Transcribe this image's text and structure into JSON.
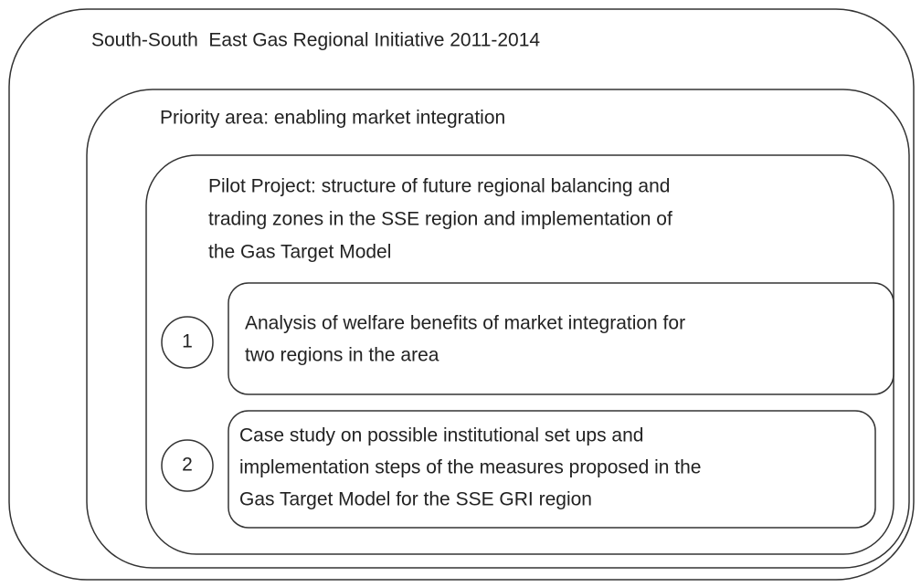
{
  "title": "South-South  East Gas Regional Initiative 2011-2014",
  "priority_area": "Priority area: enabling market integration",
  "pilot_project": {
    "lines": [
      "Pilot Project: structure of future regional balancing and",
      "trading zones in the SSE region and implementation of",
      "the Gas Target Model"
    ]
  },
  "steps": [
    {
      "number": "1",
      "lines": [
        "Analysis of welfare benefits of market integration for",
        "two regions in the area"
      ]
    },
    {
      "number": "2",
      "lines": [
        "Case study on possible institutional set ups and",
        "implementation steps of the measures proposed in the",
        "Gas Target Model for the SSE GRI region"
      ]
    }
  ]
}
